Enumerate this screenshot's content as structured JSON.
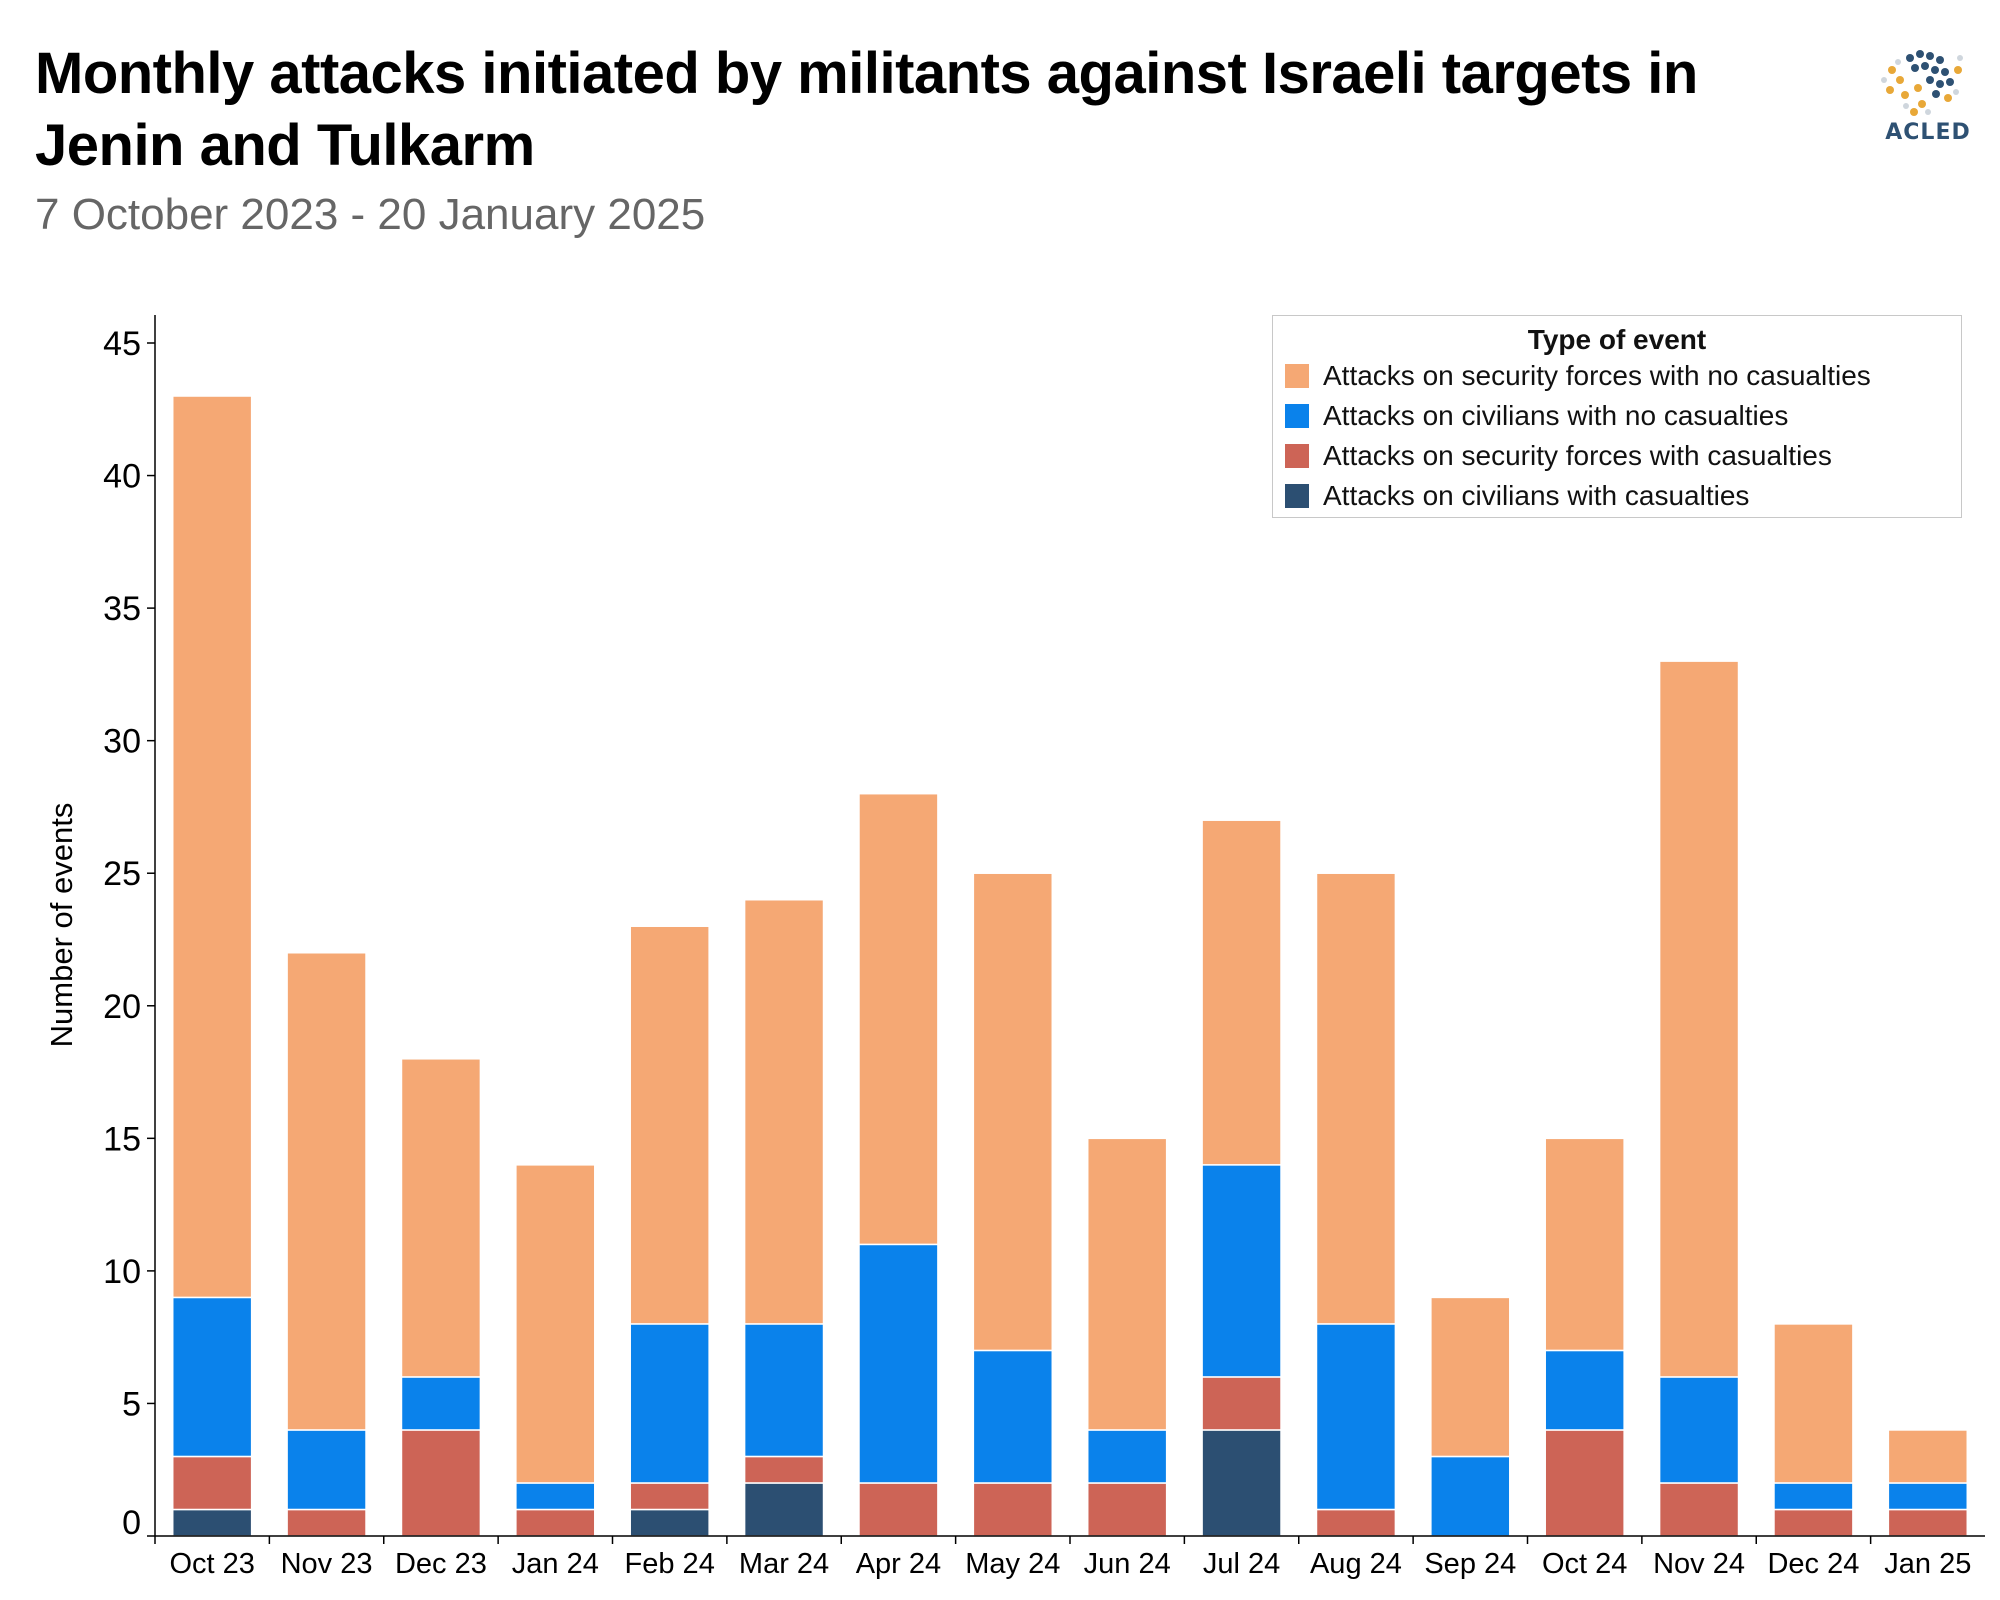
{
  "header": {
    "title": "Monthly attacks initiated by militants against Israeli targets in Jenin and Tulkarm",
    "subtitle": "7 October 2023 - 20 January 2025",
    "logo_text": "ACLED"
  },
  "colors": {
    "sec_no_cas": "#F5A874",
    "civ_no_cas": "#0A82EB",
    "sec_cas": "#CD6456",
    "civ_cas": "#2C4F72"
  },
  "chart_data": {
    "type": "bar",
    "stacked": true,
    "title": "Monthly attacks initiated by militants against Israeli targets in Jenin and Tulkarm",
    "subtitle": "7 October 2023 - 20 January 2025",
    "xlabel": "",
    "ylabel": "Number of events",
    "ylim": [
      0,
      45
    ],
    "yticks": [
      0,
      5,
      10,
      15,
      20,
      25,
      30,
      35,
      40,
      45
    ],
    "legend_title": "Type of event",
    "legend_position": "top-right",
    "categories": [
      "Oct 23",
      "Nov 23",
      "Dec 23",
      "Jan 24",
      "Feb 24",
      "Mar 24",
      "Apr 24",
      "May 24",
      "Jun 24",
      "Jul 24",
      "Aug 24",
      "Sep 24",
      "Oct 24",
      "Nov 24",
      "Dec 24",
      "Jan 25"
    ],
    "series": [
      {
        "name": "Attacks on civilians with casualties",
        "color_key": "civ_cas",
        "values": [
          1,
          0,
          0,
          0,
          1,
          2,
          0,
          0,
          0,
          4,
          0,
          0,
          0,
          0,
          0,
          0
        ]
      },
      {
        "name": "Attacks on security forces with casualties",
        "color_key": "sec_cas",
        "values": [
          2,
          1,
          4,
          1,
          1,
          1,
          2,
          2,
          2,
          2,
          1,
          0,
          4,
          2,
          1,
          1
        ]
      },
      {
        "name": "Attacks on civilians with no casualties",
        "color_key": "civ_no_cas",
        "values": [
          6,
          3,
          2,
          1,
          6,
          5,
          9,
          5,
          2,
          8,
          7,
          3,
          3,
          4,
          1,
          1
        ]
      },
      {
        "name": "Attacks on security forces with no casualties",
        "color_key": "sec_no_cas",
        "values": [
          34,
          18,
          12,
          12,
          15,
          16,
          17,
          18,
          11,
          13,
          17,
          6,
          8,
          27,
          6,
          2
        ]
      }
    ]
  }
}
